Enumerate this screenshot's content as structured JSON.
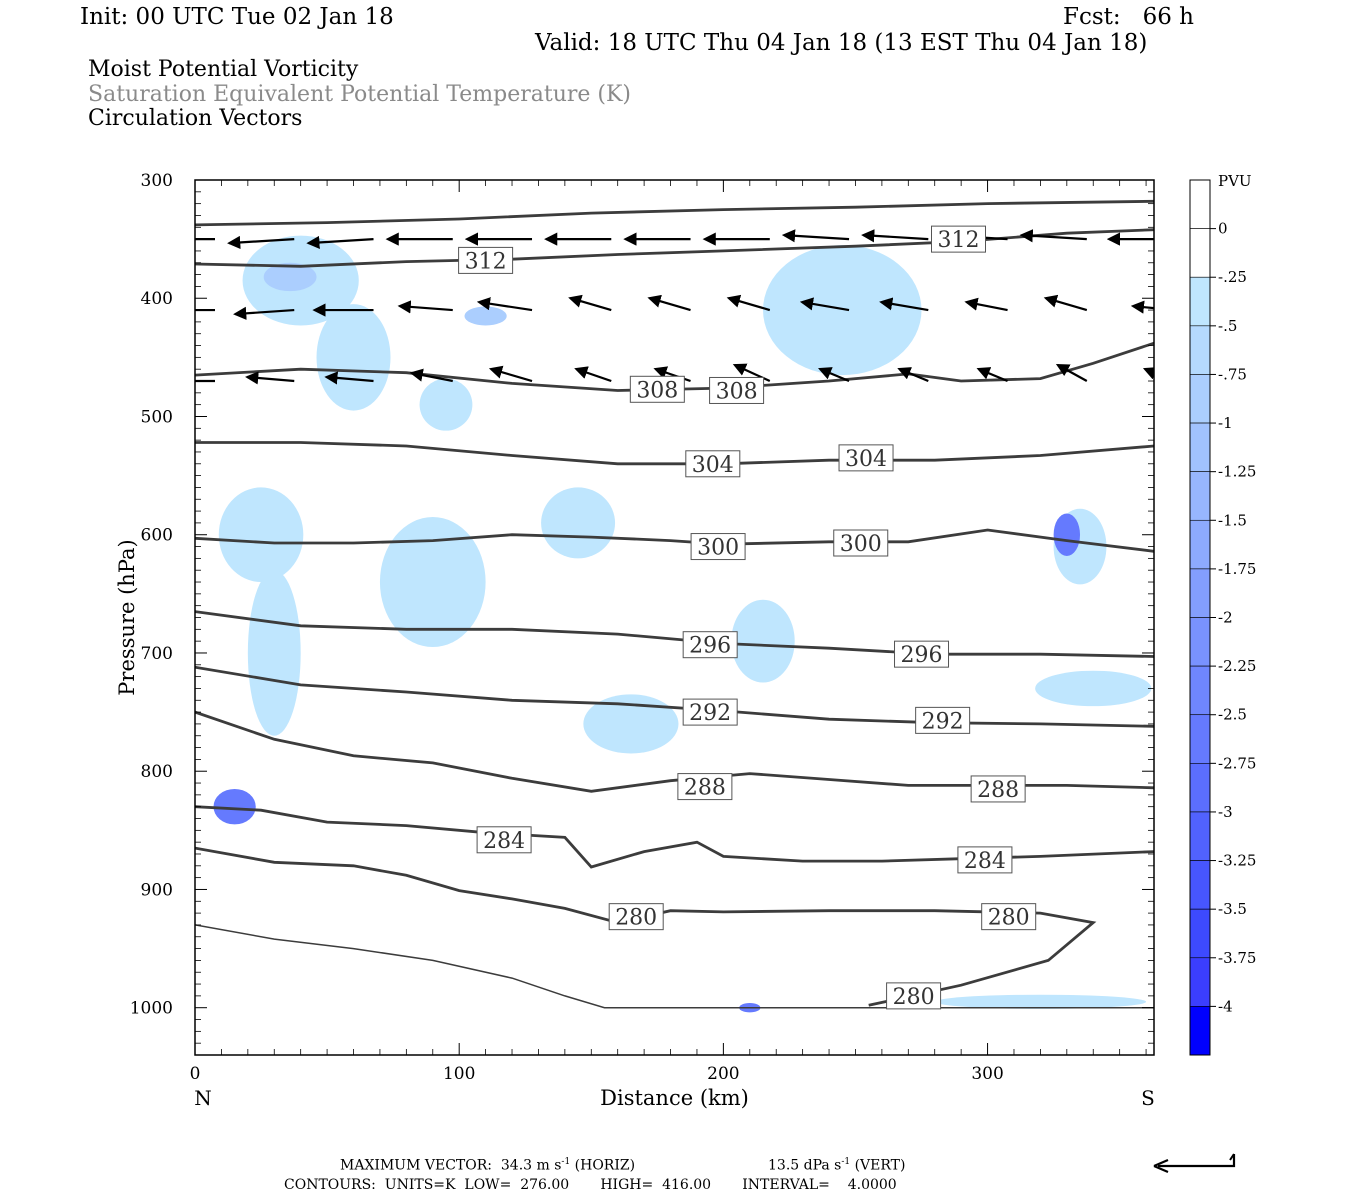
{
  "header": {
    "init": "Init: 00 UTC Tue 02 Jan 18",
    "fcst": "Fcst:   66 h",
    "valid": "Valid: 18 UTC Thu 04 Jan 18 (13 EST Thu 04 Jan 18)",
    "field1": "Moist Potential Vorticity",
    "field2": "Saturation Equivalent Potential Temperature (K)",
    "field3": "Circulation Vectors"
  },
  "footer": {
    "max_vector": "MAXIMUM VECTOR:  34.3 m s",
    "max_vector_exp": "-1",
    "max_vector_h": " (HORIZ)",
    "vert": "13.5 dPa s",
    "vert_exp": "-1",
    "vert_tail": " (VERT)",
    "contours": "CONTOURS:  UNITS=K  LOW=  276.00       HIGH=  416.00       INTERVAL=    4.0000"
  },
  "chart_data": {
    "type": "contour",
    "xlabel": "Distance (km)",
    "ylabel": "Pressure (hPa)",
    "xlim": [
      0,
      363
    ],
    "ylim": [
      1040,
      300
    ],
    "x_ticks": [
      0,
      100,
      200,
      300
    ],
    "y_ticks": [
      300,
      400,
      500,
      600,
      700,
      800,
      900,
      1000
    ],
    "x_end_labels": {
      "left": "N",
      "right": "S"
    },
    "colorbar": {
      "units": "PVU",
      "labels": [
        "0",
        "-.25",
        "-.5",
        "-.75",
        "-1",
        "-1.25",
        "-1.5",
        "-1.75",
        "-2",
        "-2.25",
        "-2.5",
        "-2.75",
        "-3",
        "-3.25",
        "-3.5",
        "-3.75",
        "-4"
      ],
      "colors": [
        "#ffffff",
        "#ffffff",
        "#bfe6fe",
        "#b5dafe",
        "#abcefe",
        "#a1c2fe",
        "#97b6fe",
        "#8daafe",
        "#839efe",
        "#7992fe",
        "#6f86fe",
        "#657afe",
        "#5b6efe",
        "#5162fe",
        "#4756fe",
        "#3d4afe",
        "#3b3efe",
        "#0000fe"
      ]
    },
    "isentropes": [
      {
        "value": 312,
        "points": [
          [
            0,
            338
          ],
          [
            50,
            336
          ],
          [
            100,
            333
          ],
          [
            150,
            328
          ],
          [
            200,
            325
          ],
          [
            250,
            323
          ],
          [
            300,
            320
          ],
          [
            363,
            318
          ]
        ],
        "labels": []
      },
      {
        "value": 312,
        "points": [
          [
            0,
            371
          ],
          [
            40,
            373
          ],
          [
            80,
            369
          ],
          [
            120,
            367
          ],
          [
            160,
            363
          ],
          [
            200,
            360
          ],
          [
            250,
            356
          ],
          [
            290,
            352
          ],
          [
            330,
            345
          ],
          [
            363,
            342
          ]
        ],
        "labels": [
          [
            110,
            368
          ],
          [
            289,
            350
          ]
        ]
      },
      {
        "value": 308,
        "points": [
          [
            0,
            465
          ],
          [
            40,
            460
          ],
          [
            80,
            463
          ],
          [
            120,
            472
          ],
          [
            160,
            478
          ],
          [
            200,
            476
          ],
          [
            240,
            470
          ],
          [
            270,
            464
          ],
          [
            290,
            470
          ],
          [
            320,
            468
          ],
          [
            340,
            455
          ],
          [
            363,
            438
          ]
        ],
        "labels": [
          [
            175,
            477
          ],
          [
            205,
            478
          ]
        ]
      },
      {
        "value": 304,
        "points": [
          [
            0,
            522
          ],
          [
            40,
            522
          ],
          [
            80,
            525
          ],
          [
            120,
            533
          ],
          [
            160,
            540
          ],
          [
            200,
            540
          ],
          [
            240,
            537
          ],
          [
            280,
            537
          ],
          [
            320,
            533
          ],
          [
            363,
            525
          ]
        ],
        "labels": [
          [
            196,
            540
          ],
          [
            254,
            535
          ]
        ]
      },
      {
        "value": 300,
        "points": [
          [
            0,
            603
          ],
          [
            30,
            607
          ],
          [
            60,
            607
          ],
          [
            90,
            605
          ],
          [
            120,
            600
          ],
          [
            150,
            602
          ],
          [
            180,
            605
          ],
          [
            200,
            608
          ],
          [
            240,
            606
          ],
          [
            270,
            606
          ],
          [
            300,
            596
          ],
          [
            330,
            605
          ],
          [
            363,
            614
          ]
        ],
        "labels": [
          [
            198,
            610
          ],
          [
            252,
            607
          ]
        ]
      },
      {
        "value": 296,
        "points": [
          [
            0,
            665
          ],
          [
            40,
            677
          ],
          [
            80,
            680
          ],
          [
            120,
            680
          ],
          [
            160,
            684
          ],
          [
            200,
            692
          ],
          [
            240,
            696
          ],
          [
            280,
            701
          ],
          [
            320,
            701
          ],
          [
            363,
            703
          ]
        ],
        "labels": [
          [
            195,
            693
          ],
          [
            275,
            701
          ]
        ]
      },
      {
        "value": 292,
        "points": [
          [
            0,
            712
          ],
          [
            40,
            727
          ],
          [
            80,
            733
          ],
          [
            120,
            740
          ],
          [
            160,
            743
          ],
          [
            200,
            749
          ],
          [
            240,
            756
          ],
          [
            280,
            759
          ],
          [
            320,
            760
          ],
          [
            363,
            762
          ]
        ],
        "labels": [
          [
            195,
            750
          ],
          [
            283,
            757
          ]
        ]
      },
      {
        "value": 288,
        "points": [
          [
            0,
            750
          ],
          [
            30,
            773
          ],
          [
            60,
            787
          ],
          [
            90,
            793
          ],
          [
            120,
            806
          ],
          [
            150,
            817
          ],
          [
            180,
            808
          ],
          [
            210,
            802
          ],
          [
            240,
            807
          ],
          [
            270,
            812
          ],
          [
            300,
            812
          ],
          [
            330,
            812
          ],
          [
            363,
            814
          ]
        ],
        "labels": [
          [
            193,
            813
          ],
          [
            304,
            815
          ]
        ]
      },
      {
        "value": 284,
        "points": [
          [
            0,
            830
          ],
          [
            25,
            833
          ],
          [
            50,
            843
          ],
          [
            80,
            846
          ],
          [
            110,
            852
          ],
          [
            140,
            856
          ],
          [
            150,
            881
          ],
          [
            170,
            868
          ],
          [
            190,
            860
          ],
          [
            200,
            872
          ],
          [
            230,
            876
          ],
          [
            260,
            876
          ],
          [
            290,
            874
          ],
          [
            320,
            872
          ],
          [
            363,
            868
          ]
        ],
        "labels": [
          [
            117,
            858
          ],
          [
            299,
            875
          ]
        ]
      },
      {
        "value": 280,
        "points": [
          [
            0,
            865
          ],
          [
            30,
            877
          ],
          [
            60,
            880
          ],
          [
            80,
            888
          ],
          [
            100,
            901
          ],
          [
            120,
            908
          ],
          [
            140,
            916
          ],
          [
            160,
            928
          ],
          [
            180,
            918
          ],
          [
            200,
            919
          ],
          [
            240,
            918
          ],
          [
            280,
            918
          ],
          [
            320,
            920
          ],
          [
            340,
            928
          ],
          [
            323,
            960
          ],
          [
            290,
            981
          ],
          [
            255,
            998
          ]
        ],
        "labels": [
          [
            167,
            923
          ],
          [
            308,
            923
          ],
          [
            272,
            990
          ]
        ]
      },
      {
        "value": 276,
        "points": [
          [
            0,
            930
          ],
          [
            30,
            942
          ],
          [
            60,
            950
          ],
          [
            90,
            960
          ],
          [
            120,
            975
          ],
          [
            140,
            990
          ],
          [
            155,
            1000
          ],
          [
            200,
            1000
          ],
          [
            250,
            1000
          ],
          [
            300,
            1000
          ],
          [
            363,
            1000
          ]
        ],
        "labels": []
      }
    ],
    "circulation_vectors": [
      {
        "pressure": 350,
        "x": [
          0,
          30,
          60,
          90,
          120,
          150,
          180,
          210,
          240,
          270,
          300,
          330,
          363
        ],
        "u": [
          -1,
          -1,
          -1,
          -1,
          -1,
          -1,
          -1,
          -1,
          -1,
          -1,
          -1,
          -1,
          -1
        ],
        "w": [
          0,
          0.1,
          0.1,
          0,
          0,
          0,
          0,
          0,
          -0.1,
          -0.1,
          -0.1,
          -0.1,
          0
        ]
      },
      {
        "pressure": 410,
        "x": [
          0,
          30,
          60,
          90,
          120,
          150,
          180,
          210,
          240,
          270,
          300,
          330,
          363
        ],
        "u": [
          -0.9,
          -0.9,
          -0.9,
          -0.8,
          -0.8,
          -0.6,
          -0.6,
          -0.6,
          -0.7,
          -0.7,
          -0.6,
          -0.6,
          -0.6
        ],
        "w": [
          0,
          0.1,
          0,
          -0.1,
          -0.2,
          -0.3,
          -0.3,
          -0.3,
          -0.2,
          -0.2,
          -0.2,
          -0.3,
          -0.1
        ]
      },
      {
        "pressure": 470,
        "x": [
          0,
          30,
          60,
          90,
          120,
          150,
          180,
          210,
          240,
          270,
          300,
          330,
          363
        ],
        "u": [
          -0.7,
          -0.7,
          -0.7,
          -0.6,
          -0.6,
          -0.5,
          -0.5,
          -0.5,
          -0.4,
          -0.4,
          -0.4,
          -0.4,
          -0.4
        ],
        "w": [
          0,
          -0.1,
          -0.1,
          -0.2,
          -0.3,
          -0.3,
          -0.3,
          -0.4,
          -0.3,
          -0.3,
          -0.3,
          -0.4,
          -0.3
        ]
      }
    ],
    "pv_max_region": {
      "units": "PVU",
      "min_value": -2.75,
      "location_km": 330,
      "location_hpa": 600
    }
  }
}
